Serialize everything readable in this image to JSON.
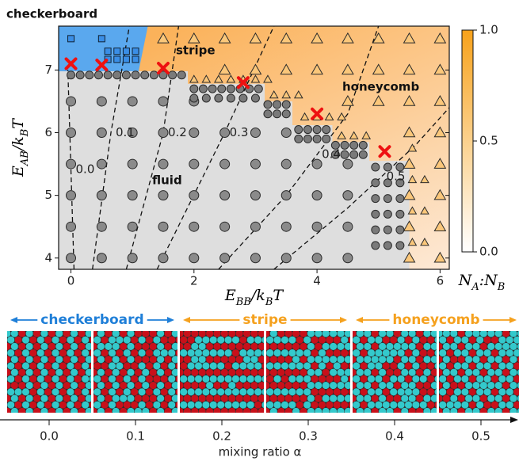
{
  "chart_data": [
    {
      "type": "scatter",
      "xlim": [
        -0.2,
        6.15
      ],
      "ylim": [
        3.82,
        7.7
      ],
      "xticks": [
        0,
        2,
        4,
        6
      ],
      "yticks": [
        4,
        5,
        6,
        7
      ],
      "x_label": [
        "E",
        "BB",
        "/k",
        "B",
        "T"
      ],
      "y_label": [
        "E",
        "AB",
        "/k",
        "B",
        "T"
      ],
      "region_labels": [
        "checkerboard",
        "stripe",
        "honeycomb",
        "fluid"
      ],
      "phase_boundary": {
        "x": [
          -0.2,
          1.9,
          1.9,
          3.15,
          3.15,
          3.6,
          3.6,
          4.25,
          4.25,
          4.85,
          4.85,
          5.5,
          5.5
        ],
        "y": [
          6.98,
          6.98,
          6.78,
          6.78,
          6.5,
          6.5,
          6.12,
          6.12,
          5.85,
          5.85,
          5.55,
          5.55,
          3.82
        ]
      },
      "checkerboard_region": {
        "x": [
          -0.2,
          1.25,
          1.1,
          -0.2
        ],
        "y": [
          7.7,
          7.7,
          6.98,
          6.98
        ],
        "color": "#5aa8ee"
      },
      "fluid_color": "#dedede",
      "ordered_colors": [
        "#fbb25a",
        "#fde9d6"
      ],
      "series": [
        {
          "marker": "circle",
          "size": 6,
          "color": "#8a8a8a",
          "x": [
            0,
            0.5,
            1,
            1.5,
            2,
            0,
            0.5,
            1,
            1.5,
            2,
            2.5,
            3,
            3.5,
            0,
            0.5,
            1,
            1.5,
            2,
            2.5,
            3,
            3.5,
            4,
            4.5,
            0,
            0.5,
            1,
            1.5,
            2,
            2.5,
            3,
            3.5,
            4,
            4.5,
            0,
            0.5,
            1,
            1.5,
            2,
            2.5,
            3,
            3.5,
            4,
            4.5,
            0,
            0.5,
            1,
            1.5,
            2,
            2.5,
            3,
            3.5,
            4,
            4.5
          ],
          "y": [
            6.5,
            6.5,
            6.5,
            6.5,
            6.5,
            6,
            6,
            6,
            6,
            6,
            6,
            6,
            6,
            5.5,
            5.5,
            5.5,
            5.5,
            5.5,
            5.5,
            5.5,
            5.5,
            5.5,
            5.5,
            5,
            5,
            5,
            5,
            5,
            5,
            5,
            5,
            5,
            5,
            4.5,
            4.5,
            4.5,
            4.5,
            4.5,
            4.5,
            4.5,
            4.5,
            4.5,
            4.5,
            4,
            4,
            4,
            4,
            4,
            4,
            4,
            4,
            4,
            4
          ]
        },
        {
          "marker": "circle",
          "size": 5,
          "color": "#7a7a7a",
          "x": [
            0,
            0.15,
            0.3,
            0.45,
            0.6,
            0.75,
            0.9,
            1.05,
            1.2,
            1.35,
            1.5,
            1.65,
            1.8,
            2.0,
            2.15,
            2.3,
            2.45,
            2.6,
            2.75,
            2.9,
            3.05,
            2.0,
            2.2,
            2.4,
            2.6,
            2.8,
            3.0,
            3.2,
            3.35,
            3.5,
            3.2,
            3.35,
            3.5,
            3.7,
            3.85,
            4.0,
            4.15,
            3.7,
            3.85,
            4.0,
            4.15,
            4.3,
            4.45,
            4.6,
            4.75,
            4.3,
            4.45,
            4.6,
            4.75,
            4.95,
            4.95,
            4.95,
            4.95,
            4.95,
            4.95,
            5.15,
            5.15,
            5.15,
            5.15,
            5.15,
            5.15,
            5.35,
            5.35,
            5.35,
            5.35,
            5.35,
            5.35
          ],
          "y": [
            6.92,
            6.92,
            6.92,
            6.92,
            6.92,
            6.92,
            6.92,
            6.92,
            6.92,
            6.92,
            6.92,
            6.92,
            6.92,
            6.7,
            6.7,
            6.7,
            6.7,
            6.7,
            6.7,
            6.7,
            6.7,
            6.55,
            6.55,
            6.55,
            6.55,
            6.55,
            6.55,
            6.45,
            6.45,
            6.45,
            6.3,
            6.3,
            6.3,
            6.05,
            6.05,
            6.05,
            6.05,
            5.9,
            5.9,
            5.9,
            5.9,
            5.8,
            5.8,
            5.8,
            5.8,
            5.65,
            5.65,
            5.65,
            5.65,
            4.2,
            4.45,
            4.7,
            4.95,
            5.2,
            5.45,
            4.2,
            4.45,
            4.7,
            4.95,
            5.2,
            5.45,
            4.2,
            4.45,
            4.7,
            4.95,
            5.2,
            5.45
          ]
        },
        {
          "marker": "triangle",
          "size": 7,
          "color": "#fbc77a",
          "x": [
            1.5,
            2,
            2.5,
            3,
            3.5,
            4,
            4.5,
            5,
            5.5,
            6,
            2.5,
            3,
            3.5,
            4,
            4.5,
            5,
            5.5,
            6,
            4.5,
            5,
            5.5,
            6,
            5.5,
            6,
            5.5,
            6,
            5.5,
            6,
            5.5,
            6,
            5.5,
            6
          ],
          "y": [
            7.5,
            7.5,
            7.5,
            7.5,
            7.5,
            7.5,
            7.5,
            7.5,
            7.5,
            7.5,
            7,
            7,
            7,
            7,
            7,
            7,
            7,
            7,
            6.5,
            6.5,
            6.5,
            6.5,
            6,
            6,
            5.5,
            5.5,
            5,
            5,
            4.5,
            4.5,
            4,
            4
          ]
        },
        {
          "marker": "triangle",
          "size": 5,
          "color": "#fbc77a",
          "x": [
            2.0,
            2.2,
            2.4,
            2.6,
            2.8,
            3.0,
            3.2,
            3.3,
            3.5,
            3.7,
            3.8,
            4.0,
            4.2,
            4.4,
            4.4,
            4.6,
            4.8,
            5.55,
            5.55,
            5.55,
            5.55,
            5.75,
            5.75,
            5.75
          ],
          "y": [
            6.85,
            6.85,
            6.85,
            6.85,
            6.85,
            6.85,
            6.85,
            6.6,
            6.6,
            6.6,
            6.25,
            6.25,
            6.25,
            6.25,
            5.95,
            5.95,
            5.95,
            4.25,
            4.75,
            5.25,
            5.75,
            4.25,
            4.75,
            5.25
          ]
        },
        {
          "marker": "square",
          "size": 8,
          "color": "#3a8ee6",
          "x": [
            0,
            0.5,
            0.6,
            0.75,
            0.9,
            1.05,
            0.6,
            0.75,
            0.9,
            1.05
          ],
          "y": [
            7.5,
            7.5,
            7.3,
            7.3,
            7.3,
            7.3,
            7.17,
            7.17,
            7.17,
            7.17
          ]
        }
      ],
      "contours": [
        {
          "label": "0.0",
          "x": [
            0.05,
            -0.05
          ],
          "y": [
            3.82,
            7.0
          ]
        },
        {
          "label": "0.1",
          "x": [
            0.35,
            0.65,
            0.95
          ],
          "y": [
            3.82,
            6.0,
            7.7
          ]
        },
        {
          "label": "0.2",
          "x": [
            0.9,
            1.5,
            1.75
          ],
          "y": [
            3.82,
            6.0,
            7.7
          ]
        },
        {
          "label": "0.3",
          "x": [
            1.4,
            2.5,
            3.3
          ],
          "y": [
            3.82,
            6.0,
            7.7
          ]
        },
        {
          "label": "0.4",
          "x": [
            2.4,
            3.5,
            4.5,
            5.0
          ],
          "y": [
            3.82,
            5.0,
            6.3,
            7.7
          ]
        },
        {
          "label": "0.5",
          "x": [
            3.3,
            4.5,
            5.6,
            6.15
          ],
          "y": [
            3.82,
            4.8,
            5.8,
            6.4
          ]
        }
      ],
      "crosses": {
        "color": "#ee1111",
        "x": [
          0,
          0.5,
          1.5,
          2.8,
          4.0,
          5.1
        ],
        "y": [
          7.1,
          7.08,
          7.03,
          6.8,
          6.3,
          5.7
        ]
      },
      "colorbar": {
        "lim": [
          0,
          1
        ],
        "ticks": [
          {
            "value": 0,
            "label": "0.0"
          },
          0.5,
          {
            "value": 1,
            "label": "1.0"
          }
        ],
        "colors": [
          "#ffffff",
          "#f7a21b"
        ],
        "label": [
          "N",
          "A",
          ":N",
          "B"
        ]
      }
    },
    {
      "type": "snapshots",
      "phases": [
        {
          "label": "checkerboard",
          "color": "#1f7fd8"
        },
        {
          "label": "stripe",
          "color": "#f5a11e"
        },
        {
          "label": "honeycomb",
          "color": "#f5a11e"
        }
      ],
      "colors": [
        "#c8101a",
        "#33c9cc"
      ],
      "xlim": [
        -0.057,
        0.54
      ],
      "xticks": [
        {
          "value": 0,
          "label": "0.0"
        },
        0.1,
        0.2,
        0.3,
        0.4,
        0.5
      ],
      "x_label": "mixing ratio α"
    }
  ]
}
